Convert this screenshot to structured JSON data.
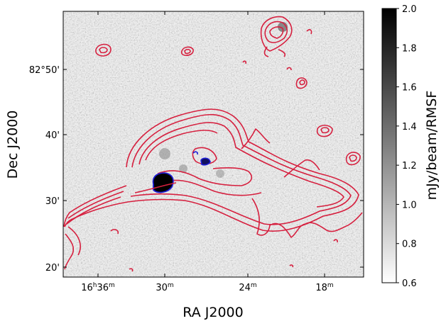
{
  "chart_data": {
    "type": "heatmap",
    "title": "",
    "xlabel": "RA J2000",
    "ylabel": "Dec J2000",
    "x_ticks": [
      {
        "h": "16",
        "m": "36"
      },
      {
        "h": "",
        "m": "30"
      },
      {
        "h": "",
        "m": "24"
      },
      {
        "h": "",
        "m": "18"
      }
    ],
    "y_ticks": [
      "82°50'",
      "40'",
      "30'",
      "20'"
    ],
    "colorbar": {
      "label": "mJy/beam/RMSF",
      "ticks": [
        "2.0",
        "1.8",
        "1.6",
        "1.4",
        "1.2",
        "1.0",
        "0.8",
        "0.6"
      ],
      "range": [
        0.6,
        2.0
      ],
      "colormap": "gray_r"
    },
    "overlays": [
      {
        "kind": "contours",
        "color": "#d6203f"
      },
      {
        "kind": "contours",
        "color": "#1f1fd6"
      }
    ],
    "colors": {
      "contour_red": "#d6203f",
      "contour_blue": "#1f1fd6",
      "background": "#ffffff"
    }
  }
}
